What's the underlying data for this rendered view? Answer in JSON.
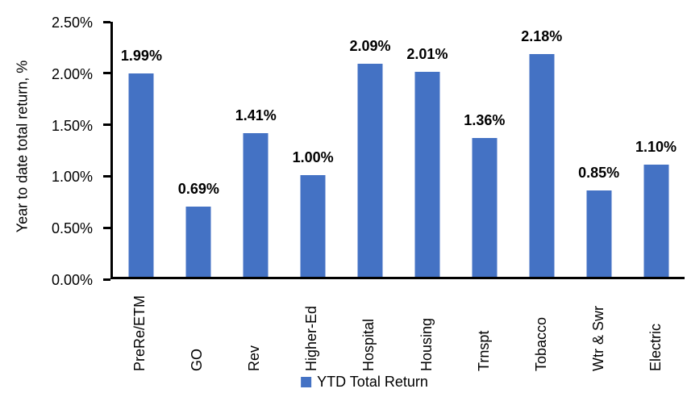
{
  "chart_data": {
    "type": "bar",
    "title": "",
    "xlabel": "",
    "ylabel": "Year to date total return, %",
    "ylim": [
      0,
      2.5
    ],
    "y_tick_labels": [
      "2.50%",
      "2.00%",
      "1.50%",
      "1.00%",
      "0.50%",
      "0.00%"
    ],
    "categories": [
      "PreRe/ETM",
      "GO",
      "Rev",
      "Higher-Ed",
      "Hospital",
      "Housing",
      "Trnspt",
      "Tobacco",
      "Wtr & Swr",
      "Electric"
    ],
    "values": [
      1.99,
      0.69,
      1.41,
      1.0,
      2.09,
      2.01,
      1.36,
      2.18,
      0.85,
      1.1
    ],
    "point_labels": [
      "1.99%",
      "0.69%",
      "1.41%",
      "1.00%",
      "2.09%",
      "2.01%",
      "1.36%",
      "2.18%",
      "0.85%",
      "1.10%"
    ],
    "legend": {
      "label": "YTD Total Return",
      "position": "bottom"
    },
    "colors": {
      "bar": "#4472C4",
      "axis": "#000000",
      "text": "#000000"
    },
    "grid": false
  }
}
